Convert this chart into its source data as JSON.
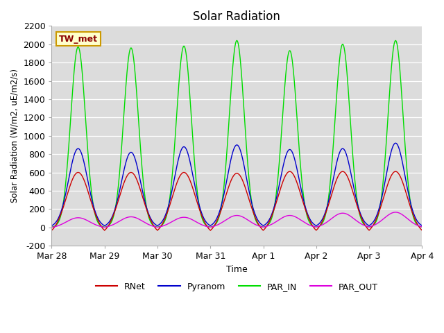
{
  "title": "Solar Radiation",
  "ylabel": "Solar Radiation (W/m2, uE/m2/s)",
  "xlabel": "Time",
  "ylim": [
    -200,
    2200
  ],
  "yticks": [
    -200,
    0,
    200,
    400,
    600,
    800,
    1000,
    1200,
    1400,
    1600,
    1800,
    2000,
    2200
  ],
  "xtick_labels": [
    "Mar 28",
    "Mar 29",
    "Mar 30",
    "Mar 31",
    "Apr 1",
    "Apr 2",
    "Apr 3",
    "Apr 4"
  ],
  "bg_color": "#dcdcdc",
  "fig_bg": "#ffffff",
  "annotation_text": "TW_met",
  "annotation_bg": "#ffffcc",
  "annotation_border": "#cc9900",
  "legend_entries": [
    "RNet",
    "Pyranom",
    "PAR_IN",
    "PAR_OUT"
  ],
  "colors": {
    "RNet": "#cc0000",
    "Pyranom": "#0000cc",
    "PAR_IN": "#00dd00",
    "PAR_OUT": "#dd00dd"
  },
  "n_days": 7,
  "peaks": {
    "RNet": [
      600,
      600,
      600,
      590,
      610,
      610,
      610
    ],
    "Pyranom": [
      860,
      820,
      880,
      900,
      850,
      860,
      920
    ],
    "PAR_IN": [
      1970,
      1960,
      1980,
      2040,
      1930,
      2000,
      2040
    ],
    "PAR_OUT": [
      105,
      115,
      110,
      130,
      130,
      155,
      165
    ]
  },
  "night_RNet": -85,
  "night_Pyranom": 0,
  "night_PAR_IN": 0,
  "night_PAR_OUT": -8,
  "widths": {
    "RNet": 0.22,
    "Pyranom": 0.18,
    "PAR_IN": 0.14,
    "PAR_OUT": 0.22
  },
  "peak_hour": 12.0
}
